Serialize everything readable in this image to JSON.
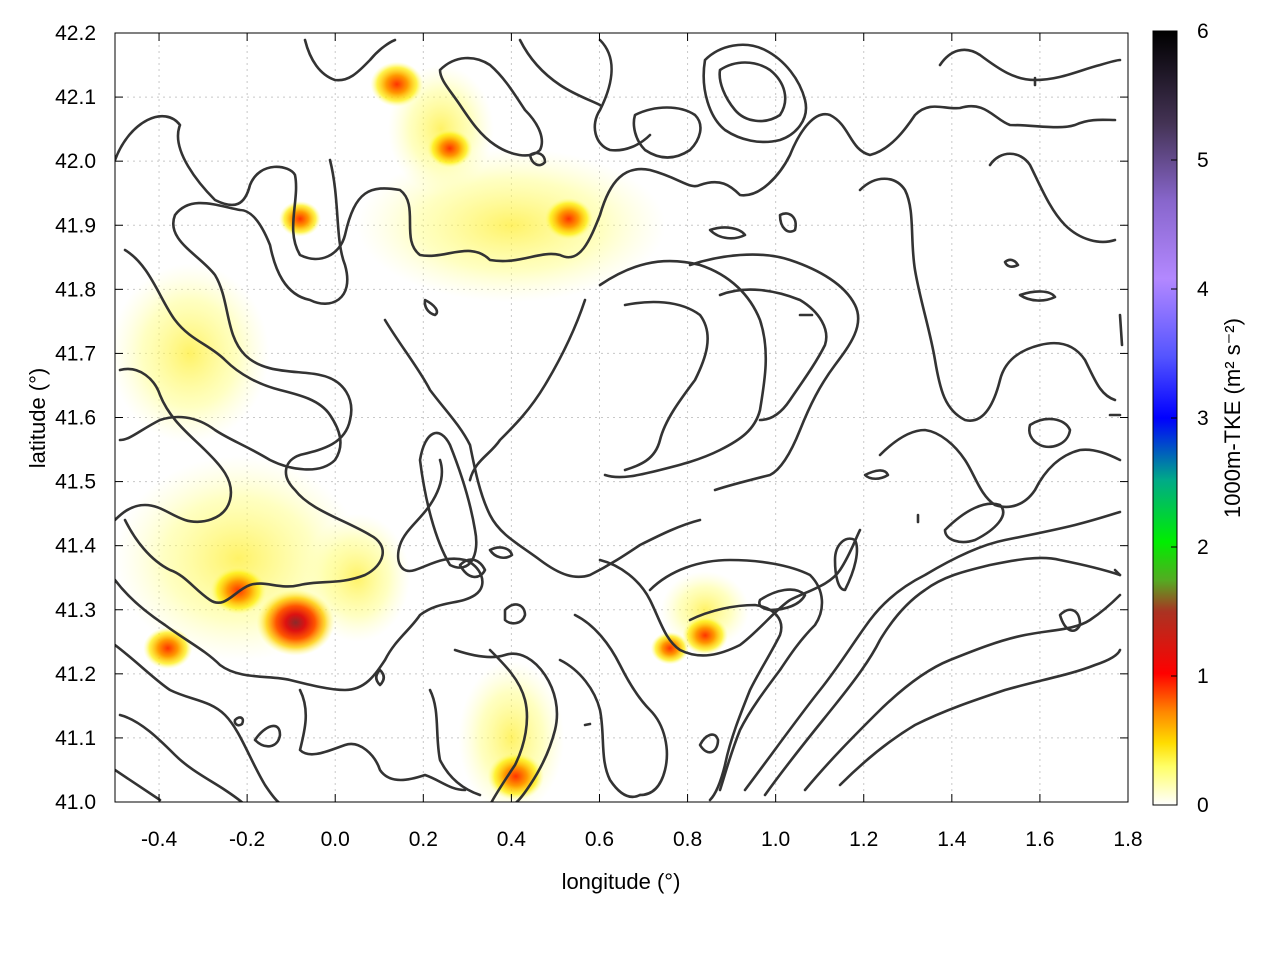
{
  "chart_data": {
    "type": "heatmap",
    "title": "",
    "xlabel": "longitude (°)",
    "ylabel": "latitude (°)",
    "xlim": [
      -0.5,
      1.8
    ],
    "ylim": [
      41.0,
      42.2
    ],
    "x_ticks": [
      "-0.4",
      "-0.2",
      "0.0",
      "0.2",
      "0.4",
      "0.6",
      "0.8",
      "1.0",
      "1.2",
      "1.4",
      "1.6",
      "1.8"
    ],
    "x_tick_values": [
      -0.4,
      -0.2,
      0.0,
      0.2,
      0.4,
      0.6,
      0.8,
      1.0,
      1.2,
      1.4,
      1.6,
      1.8
    ],
    "y_ticks": [
      "41.0",
      "41.1",
      "41.2",
      "41.3",
      "41.4",
      "41.5",
      "41.6",
      "41.7",
      "41.8",
      "41.9",
      "42.0",
      "42.1",
      "42.2"
    ],
    "y_tick_values": [
      41.0,
      41.1,
      41.2,
      41.3,
      41.4,
      41.5,
      41.6,
      41.7,
      41.8,
      41.9,
      42.0,
      42.1,
      42.2
    ],
    "grid": true,
    "colorbar": {
      "label": "1000m-TKE (m² s⁻²)",
      "range": [
        0,
        6
      ],
      "ticks": [
        "0",
        "1",
        "2",
        "3",
        "4",
        "5",
        "6"
      ],
      "tick_values": [
        0,
        1,
        2,
        3,
        4,
        5,
        6
      ],
      "colors": [
        "#ffffff",
        "#ffff00",
        "#ff9900",
        "#ff0000",
        "#8b2323",
        "#00cc00",
        "#0000ff",
        "#b07cff",
        "#000000"
      ]
    },
    "hotspots": [
      {
        "lon": -0.09,
        "lat": 41.28,
        "tke": 1.5
      },
      {
        "lon": -0.22,
        "lat": 41.33,
        "tke": 0.9
      },
      {
        "lon": -0.38,
        "lat": 41.24,
        "tke": 0.7
      },
      {
        "lon": 0.41,
        "lat": 41.04,
        "tke": 0.9
      },
      {
        "lon": 0.14,
        "lat": 42.12,
        "tke": 0.8
      },
      {
        "lon": 0.53,
        "lat": 41.91,
        "tke": 0.7
      },
      {
        "lon": 0.84,
        "lat": 41.26,
        "tke": 0.6
      },
      {
        "lon": 0.26,
        "lat": 42.02,
        "tke": 0.6
      },
      {
        "lon": -0.08,
        "lat": 41.91,
        "tke": 0.5
      },
      {
        "lon": 0.76,
        "lat": 41.24,
        "tke": 0.4
      }
    ],
    "yellow_zones": [
      {
        "lon": -0.22,
        "lat": 41.38,
        "rlon": 0.28,
        "rlat": 0.16,
        "tke": 0.25
      },
      {
        "lon": -0.33,
        "lat": 41.7,
        "rlon": 0.18,
        "rlat": 0.14,
        "tke": 0.25
      },
      {
        "lon": 0.4,
        "lat": 41.1,
        "rlon": 0.12,
        "rlat": 0.12,
        "tke": 0.25
      },
      {
        "lon": 0.4,
        "lat": 41.9,
        "rlon": 0.35,
        "rlat": 0.12,
        "tke": 0.15
      },
      {
        "lon": 0.24,
        "lat": 42.05,
        "rlon": 0.12,
        "rlat": 0.1,
        "tke": 0.2
      },
      {
        "lon": 0.84,
        "lat": 41.3,
        "rlon": 0.1,
        "rlat": 0.06,
        "tke": 0.15
      },
      {
        "lon": 0.05,
        "lat": 41.35,
        "rlon": 0.12,
        "rlat": 0.1,
        "tke": 0.15
      }
    ]
  }
}
